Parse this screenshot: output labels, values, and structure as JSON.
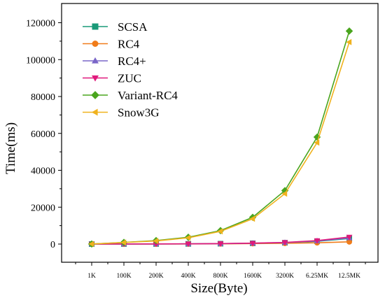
{
  "chart_data": {
    "type": "line",
    "categories": [
      "1K",
      "100K",
      "200K",
      "400K",
      "800K",
      "1600K",
      "3200K",
      "6.25MK",
      "12.5MK"
    ],
    "xlabel": "Size(Byte)",
    "ylabel": "Time(ms)",
    "ylim": [
      -10000,
      126000
    ],
    "yticks": [
      0,
      20000,
      40000,
      60000,
      80000,
      100000,
      120000
    ],
    "ytick_labels": [
      "0",
      "20000",
      "40000",
      "60000",
      "80000",
      "100000",
      "120000"
    ],
    "grid": false,
    "legend": "top-left",
    "series": [
      {
        "name": "SCSA",
        "color": "#1a9a78",
        "marker": "square",
        "values": [
          5,
          40,
          60,
          100,
          200,
          400,
          700,
          1500,
          3000
        ]
      },
      {
        "name": "RC4",
        "color": "#f07c1a",
        "marker": "circle",
        "values": [
          3,
          30,
          50,
          80,
          130,
          250,
          400,
          700,
          1200
        ]
      },
      {
        "name": "RC4+",
        "color": "#7a66c8",
        "marker": "triangle-up",
        "values": [
          5,
          40,
          70,
          110,
          220,
          450,
          800,
          1700,
          3300
        ]
      },
      {
        "name": "ZUC",
        "color": "#e0197c",
        "marker": "triangle-down",
        "values": [
          5,
          45,
          80,
          130,
          250,
          500,
          900,
          1900,
          3800
        ]
      },
      {
        "name": "Variant-RC4",
        "color": "#4aa51e",
        "marker": "diamond",
        "values": [
          50,
          900,
          1900,
          3700,
          7300,
          14500,
          29000,
          58000,
          115500
        ]
      },
      {
        "name": "Snow3G",
        "color": "#f0b21e",
        "marker": "triangle-left",
        "values": [
          40,
          850,
          1700,
          3400,
          6900,
          13700,
          27300,
          55000,
          109500
        ]
      }
    ]
  }
}
